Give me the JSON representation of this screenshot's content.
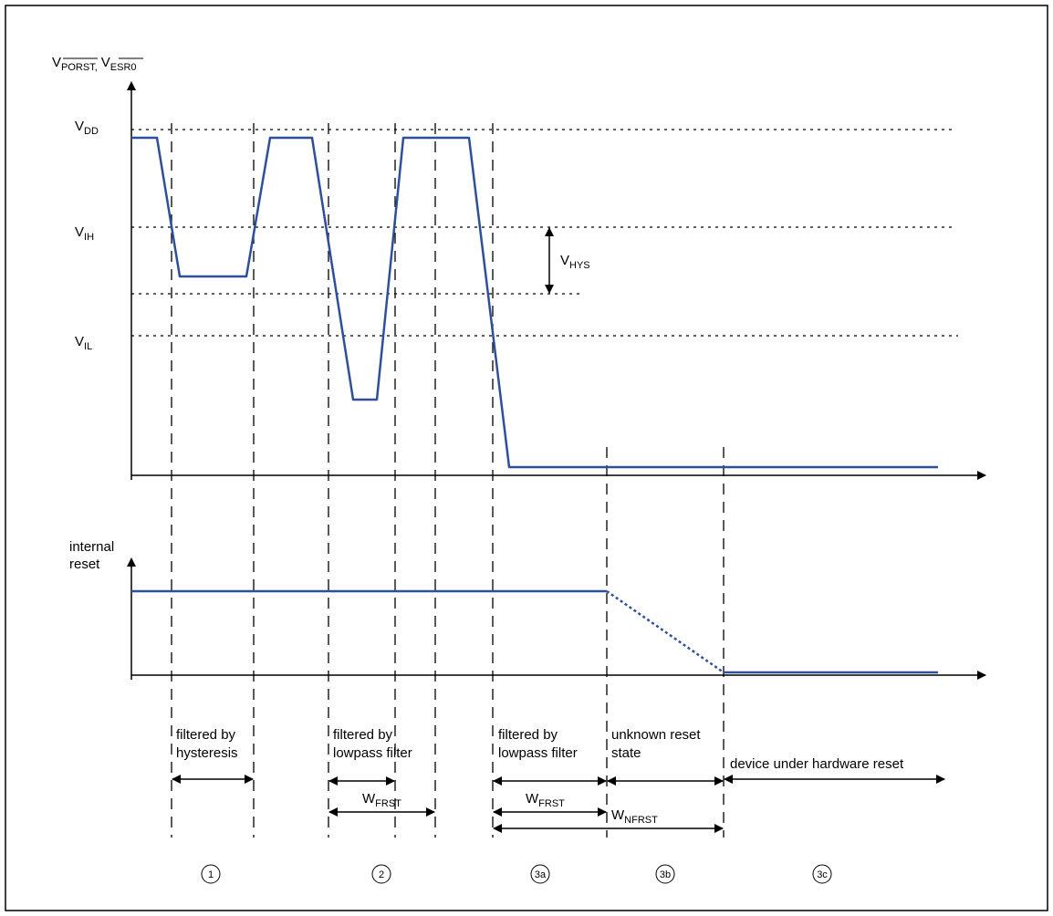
{
  "signal_axis": {
    "label_main_1": "V",
    "label_sub_1": "PORST,",
    "label_main_2": "V",
    "label_sub_2": "ESR0"
  },
  "levels": {
    "vdd": {
      "main": "V",
      "sub": "DD"
    },
    "vih": {
      "main": "V",
      "sub": "IH"
    },
    "vil": {
      "main": "V",
      "sub": "IL"
    },
    "vhys": {
      "main": "V",
      "sub": "HYS"
    }
  },
  "reset_axis": {
    "label_line1": "internal",
    "label_line2": "reset"
  },
  "regions": {
    "r1": {
      "line1": "filtered by",
      "line2": "hysteresis",
      "number": "1"
    },
    "r2": {
      "line1": "filtered by",
      "line2": "lowpass filter",
      "number": "2",
      "width_main": "W",
      "width_sub": "FRST"
    },
    "r3a": {
      "line1": "filtered by",
      "line2": "lowpass filter",
      "number": "3a",
      "width_main": "W",
      "width_sub": "FRST"
    },
    "r3b": {
      "line1": "unknown reset",
      "line2": "state",
      "number": "3b",
      "width_main": "W",
      "width_sub": "NFRST"
    },
    "r3c": {
      "line1": "device under hardware reset",
      "number": "3c"
    }
  },
  "colors": {
    "signal": "#2e4f9a",
    "ink": "#000000"
  }
}
